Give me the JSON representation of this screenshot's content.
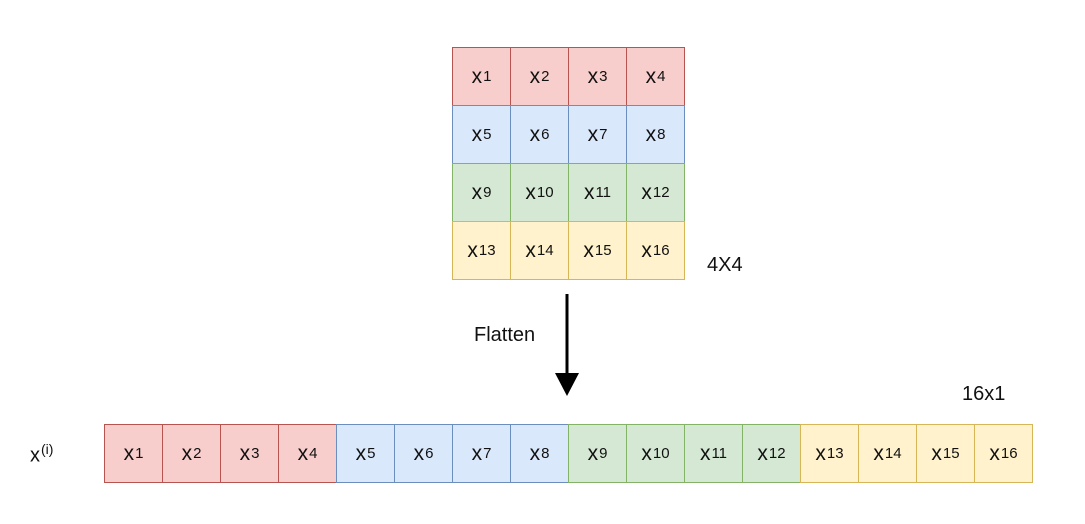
{
  "matrix": {
    "size_label": "4X4",
    "rows": [
      {
        "color": "#f8cecc",
        "cells": [
          {
            "sym": "x",
            "sub": "1"
          },
          {
            "sym": "x",
            "sub": "2"
          },
          {
            "sym": "x",
            "sub": "3"
          },
          {
            "sym": "x",
            "sub": "4"
          }
        ]
      },
      {
        "color": "#dae8fc",
        "cells": [
          {
            "sym": "x",
            "sub": "5"
          },
          {
            "sym": "x",
            "sub": "6"
          },
          {
            "sym": "x",
            "sub": "7"
          },
          {
            "sym": "x",
            "sub": "8"
          }
        ]
      },
      {
        "color": "#d5e8d4",
        "cells": [
          {
            "sym": "x",
            "sub": "9"
          },
          {
            "sym": "x",
            "sub": "10"
          },
          {
            "sym": "x",
            "sub": "11"
          },
          {
            "sym": "x",
            "sub": "12"
          }
        ]
      },
      {
        "color": "#fff2cc",
        "cells": [
          {
            "sym": "x",
            "sub": "13"
          },
          {
            "sym": "x",
            "sub": "14"
          },
          {
            "sym": "x",
            "sub": "15"
          },
          {
            "sym": "x",
            "sub": "16"
          }
        ]
      }
    ]
  },
  "arrow": {
    "label": "Flatten"
  },
  "vector": {
    "label_base": "x",
    "label_sup": "(i)",
    "size_label": "16x1",
    "cells": [
      {
        "sym": "x",
        "sub": "1",
        "color": "#f8cecc"
      },
      {
        "sym": "x",
        "sub": "2",
        "color": "#f8cecc"
      },
      {
        "sym": "x",
        "sub": "3",
        "color": "#f8cecc"
      },
      {
        "sym": "x",
        "sub": "4",
        "color": "#f8cecc"
      },
      {
        "sym": "x",
        "sub": "5",
        "color": "#dae8fc"
      },
      {
        "sym": "x",
        "sub": "6",
        "color": "#dae8fc"
      },
      {
        "sym": "x",
        "sub": "7",
        "color": "#dae8fc"
      },
      {
        "sym": "x",
        "sub": "8",
        "color": "#dae8fc"
      },
      {
        "sym": "x",
        "sub": "9",
        "color": "#d5e8d4"
      },
      {
        "sym": "x",
        "sub": "10",
        "color": "#d5e8d4"
      },
      {
        "sym": "x",
        "sub": "11",
        "color": "#d5e8d4"
      },
      {
        "sym": "x",
        "sub": "12",
        "color": "#d5e8d4"
      },
      {
        "sym": "x",
        "sub": "13",
        "color": "#fff2cc"
      },
      {
        "sym": "x",
        "sub": "14",
        "color": "#fff2cc"
      },
      {
        "sym": "x",
        "sub": "15",
        "color": "#fff2cc"
      },
      {
        "sym": "x",
        "sub": "16",
        "color": "#fff2cc"
      }
    ]
  },
  "colors": {
    "red_fill": "#f8cecc",
    "blue_fill": "#dae8fc",
    "green_fill": "#d5e8d4",
    "yellow_fill": "#fff2cc",
    "red_border": "#b85450",
    "blue_border": "#6c8ebf",
    "green_border": "#82b366",
    "yellow_border": "#d6b656",
    "arrow": "#000000"
  }
}
